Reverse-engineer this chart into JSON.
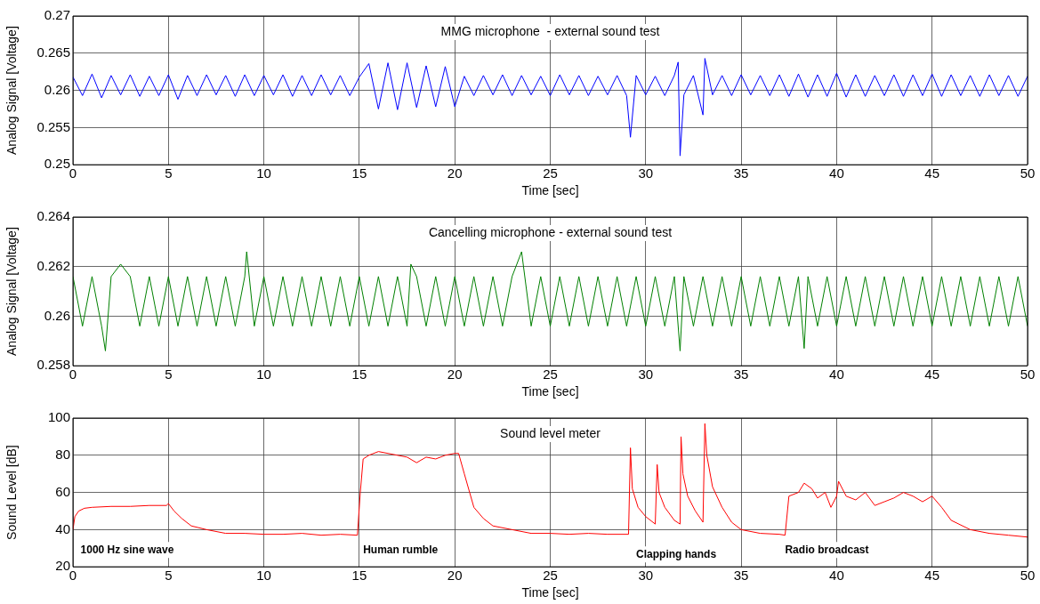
{
  "chart_data": [
    {
      "type": "line",
      "title": "MMG microphone  - external sound test",
      "xlabel": "Time [sec]",
      "ylabel": "Analog Signal [Voltage]",
      "xlim": [
        0,
        50
      ],
      "xticks": [
        0,
        5,
        10,
        15,
        20,
        25,
        30,
        35,
        40,
        45,
        50
      ],
      "ylim": [
        0.25,
        0.27
      ],
      "yticks": [
        0.25,
        0.255,
        0.26,
        0.265,
        0.27
      ],
      "grid": true,
      "marker": "none",
      "line_style": "solid",
      "x": [
        0,
        0.5,
        1,
        1.5,
        2,
        2.5,
        3,
        3.5,
        4,
        4.5,
        5,
        5.5,
        6,
        6.5,
        7,
        7.5,
        8,
        8.5,
        9,
        9.5,
        10,
        10.5,
        11,
        11.5,
        12,
        12.5,
        13,
        13.5,
        14,
        14.5,
        15,
        15.5,
        16,
        16.5,
        17,
        17.5,
        18,
        18.5,
        19,
        19.5,
        20,
        20.5,
        21,
        21.5,
        22,
        22.5,
        23,
        23.5,
        24,
        24.5,
        25,
        25.5,
        26,
        26.5,
        27,
        27.5,
        28,
        28.5,
        29,
        29.2,
        29.5,
        30,
        30.5,
        31,
        31.5,
        31.7,
        31.8,
        32,
        32.5,
        33,
        33.1,
        33.5,
        34,
        34.5,
        35,
        35.5,
        36,
        36.5,
        37,
        37.5,
        38,
        38.5,
        39,
        39.5,
        40,
        40.5,
        41,
        41.5,
        42,
        42.5,
        43,
        43.5,
        44,
        44.5,
        45,
        45.5,
        46,
        46.5,
        47,
        47.5,
        48,
        48.5,
        49,
        49.5,
        50
      ],
      "series": [
        {
          "color": "#0000ff",
          "values": [
            0.2618,
            0.2593,
            0.2622,
            0.259,
            0.262,
            0.2594,
            0.2621,
            0.2592,
            0.2619,
            0.2593,
            0.2621,
            0.2588,
            0.262,
            0.2593,
            0.2621,
            0.2594,
            0.262,
            0.2592,
            0.2621,
            0.2593,
            0.262,
            0.2594,
            0.2621,
            0.2592,
            0.262,
            0.2593,
            0.2621,
            0.2594,
            0.262,
            0.2593,
            0.2618,
            0.2636,
            0.2575,
            0.2637,
            0.2574,
            0.2637,
            0.2577,
            0.2633,
            0.2578,
            0.2632,
            0.2578,
            0.2619,
            0.2593,
            0.262,
            0.2594,
            0.2621,
            0.2593,
            0.262,
            0.2594,
            0.2619,
            0.2593,
            0.2621,
            0.2594,
            0.262,
            0.2593,
            0.2619,
            0.2594,
            0.262,
            0.2593,
            0.2537,
            0.262,
            0.2594,
            0.2619,
            0.2593,
            0.262,
            0.2638,
            0.2512,
            0.2594,
            0.262,
            0.2567,
            0.2643,
            0.2594,
            0.262,
            0.2593,
            0.2621,
            0.2594,
            0.262,
            0.2593,
            0.2621,
            0.2592,
            0.2622,
            0.2591,
            0.2621,
            0.2592,
            0.2623,
            0.2591,
            0.2621,
            0.2592,
            0.262,
            0.2593,
            0.2621,
            0.2592,
            0.2621,
            0.2593,
            0.2622,
            0.2592,
            0.2621,
            0.2593,
            0.262,
            0.2592,
            0.2621,
            0.2593,
            0.262,
            0.2592,
            0.2619
          ]
        }
      ]
    },
    {
      "type": "line",
      "title": "Cancelling microphone - external sound test",
      "xlabel": "Time [sec]",
      "ylabel": "Analog Signal [Voltage]",
      "xlim": [
        0,
        50
      ],
      "xticks": [
        0,
        5,
        10,
        15,
        20,
        25,
        30,
        35,
        40,
        45,
        50
      ],
      "ylim": [
        0.258,
        0.264
      ],
      "yticks": [
        0.258,
        0.26,
        0.262,
        0.264
      ],
      "grid": true,
      "marker": "none",
      "line_style": "solid",
      "x": [
        0,
        0.5,
        1,
        1.5,
        1.7,
        2,
        2.5,
        3,
        3.5,
        4,
        4.5,
        5,
        5.5,
        6,
        6.5,
        7,
        7.5,
        8,
        8.5,
        9,
        9.1,
        9.5,
        10,
        10.5,
        11,
        11.5,
        12,
        12.5,
        13,
        13.5,
        14,
        14.5,
        15,
        15.5,
        16,
        16.5,
        17,
        17.5,
        17.7,
        18,
        18.5,
        19,
        19.5,
        20,
        20.5,
        21,
        21.5,
        22,
        22.5,
        23,
        23.5,
        24,
        24.5,
        25,
        25.5,
        26,
        26.5,
        27,
        27.5,
        28,
        28.5,
        29,
        29.5,
        30,
        30.5,
        31,
        31.5,
        31.8,
        32,
        32.5,
        33,
        33.5,
        34,
        34.5,
        35,
        35.5,
        36,
        36.5,
        37,
        37.5,
        38,
        38.3,
        38.5,
        39,
        39.5,
        40,
        40.5,
        41,
        41.5,
        42,
        42.5,
        43,
        43.5,
        44,
        44.5,
        45,
        45.5,
        46,
        46.5,
        47,
        47.5,
        48,
        48.5,
        49,
        49.5,
        50
      ],
      "series": [
        {
          "color": "#008000",
          "values": [
            0.2616,
            0.2596,
            0.2616,
            0.2596,
            0.2586,
            0.2616,
            0.2621,
            0.2616,
            0.2596,
            0.2616,
            0.2596,
            0.2616,
            0.2596,
            0.2616,
            0.2596,
            0.2616,
            0.2596,
            0.2616,
            0.2596,
            0.2616,
            0.2626,
            0.2596,
            0.2616,
            0.2596,
            0.2616,
            0.2596,
            0.2616,
            0.2596,
            0.2616,
            0.2596,
            0.2616,
            0.2596,
            0.2616,
            0.2596,
            0.2616,
            0.2596,
            0.2616,
            0.2596,
            0.2621,
            0.2616,
            0.2596,
            0.2616,
            0.2596,
            0.2616,
            0.2596,
            0.2616,
            0.2596,
            0.2616,
            0.2596,
            0.2616,
            0.2626,
            0.2596,
            0.2616,
            0.2596,
            0.2616,
            0.2596,
            0.2616,
            0.2596,
            0.2616,
            0.2596,
            0.2616,
            0.2596,
            0.2616,
            0.2596,
            0.2616,
            0.2596,
            0.2616,
            0.2586,
            0.2616,
            0.2596,
            0.2616,
            0.2596,
            0.2616,
            0.2596,
            0.2616,
            0.2596,
            0.2616,
            0.2596,
            0.2616,
            0.2596,
            0.2616,
            0.2587,
            0.2616,
            0.2596,
            0.2616,
            0.2596,
            0.2616,
            0.2596,
            0.2616,
            0.2596,
            0.2616,
            0.2596,
            0.2616,
            0.2596,
            0.2616,
            0.2596,
            0.2616,
            0.2596,
            0.2616,
            0.2596,
            0.2616,
            0.2596,
            0.2616,
            0.2596,
            0.2616,
            0.2596
          ]
        }
      ]
    },
    {
      "type": "line",
      "title": "Sound level meter",
      "xlabel": "Time [sec]",
      "ylabel": "Sound Level [dB]",
      "xlim": [
        0,
        50
      ],
      "xticks": [
        0,
        5,
        10,
        15,
        20,
        25,
        30,
        35,
        40,
        45,
        50
      ],
      "ylim": [
        20,
        100
      ],
      "yticks": [
        20,
        40,
        60,
        80,
        100
      ],
      "grid": true,
      "marker": "none",
      "line_style": "solid",
      "annotations": [
        "1000 Hz sine wave",
        "Human rumble",
        "Clapping hands",
        "Radio broadcast"
      ],
      "x": [
        0,
        0.1,
        0.3,
        0.6,
        1,
        2,
        3,
        4,
        4.9,
        5,
        5.3,
        5.7,
        6.2,
        7,
        8,
        9,
        10,
        11,
        12,
        13,
        14,
        14.9,
        15.05,
        15.2,
        15.5,
        16,
        17,
        17.5,
        18,
        18.5,
        19,
        19.5,
        20,
        20.2,
        20.5,
        21,
        21.5,
        22,
        23,
        24,
        25,
        26,
        27,
        28,
        29.1,
        29.2,
        29.3,
        29.6,
        30,
        30.5,
        30.6,
        30.7,
        31,
        31.5,
        31.8,
        31.85,
        31.95,
        32.2,
        32.6,
        33,
        33.1,
        33.2,
        33.5,
        34,
        34.5,
        35,
        36,
        37,
        37.3,
        37.5,
        38,
        38.3,
        38.7,
        39,
        39.4,
        39.7,
        40,
        40.1,
        40.5,
        41,
        41.5,
        42,
        42.5,
        43,
        43.5,
        44,
        44.5,
        45,
        45.5,
        46,
        47,
        48,
        49,
        50
      ],
      "series": [
        {
          "color": "#ff0000",
          "values": [
            40,
            47,
            50,
            51.5,
            52,
            52.5,
            52.5,
            53,
            53,
            54,
            50,
            46,
            42,
            40,
            38,
            38,
            37.5,
            37.5,
            38,
            37,
            37.5,
            37,
            60,
            78,
            80,
            82,
            80,
            79,
            76,
            79,
            78,
            80,
            81,
            81,
            70,
            52,
            46,
            42,
            40,
            38,
            38,
            37.5,
            38,
            37.5,
            37.5,
            84,
            62,
            52,
            47,
            43,
            75,
            60,
            52,
            45,
            43,
            90,
            70,
            58,
            50,
            44,
            97,
            80,
            63,
            52,
            44,
            40,
            38,
            37.5,
            37,
            58,
            60,
            65,
            62,
            57,
            60,
            52,
            58,
            66,
            58,
            56,
            60,
            53,
            55,
            57,
            60,
            58,
            55,
            58,
            52,
            45,
            40,
            38,
            37,
            36
          ]
        }
      ]
    }
  ]
}
